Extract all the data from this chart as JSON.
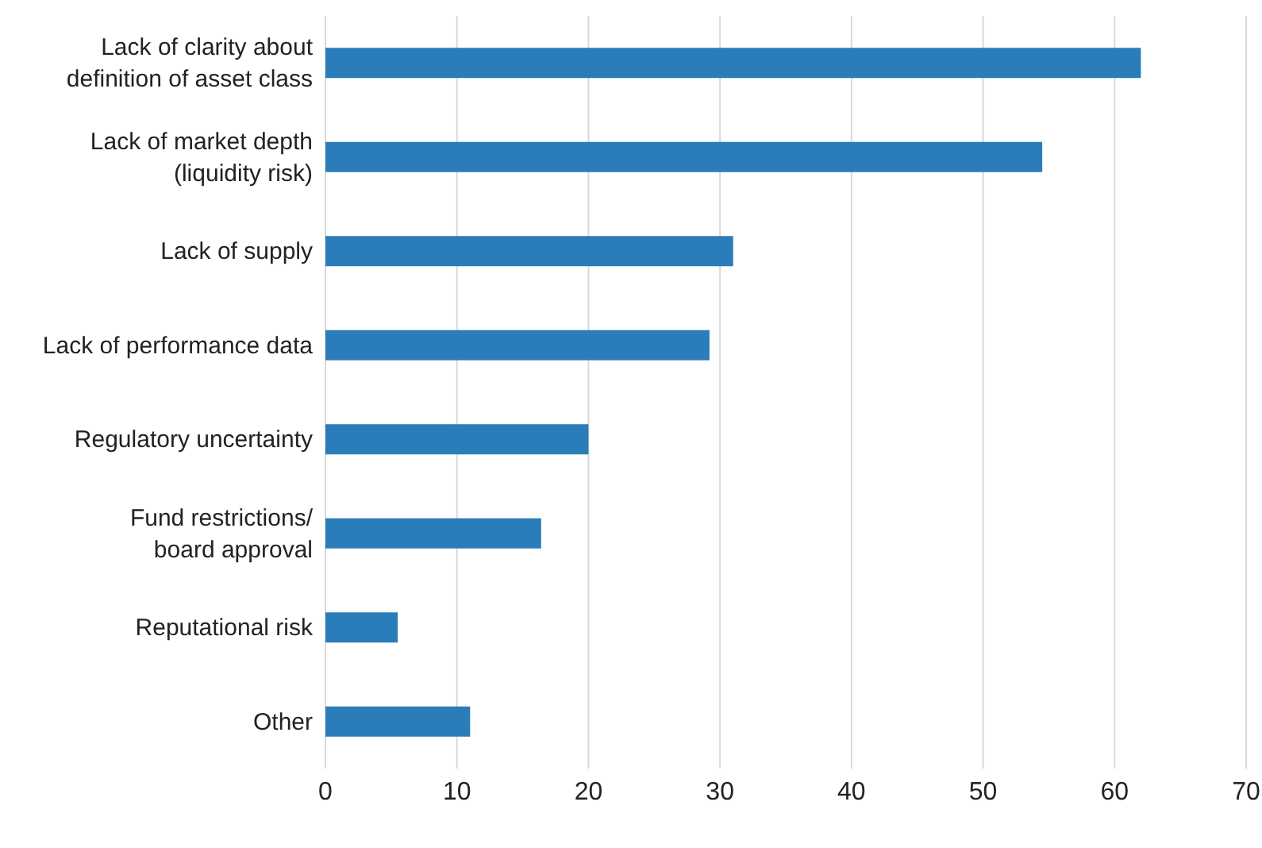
{
  "chart_data": {
    "type": "bar",
    "orientation": "horizontal",
    "categories": [
      "Lack of clarity about definition of asset class",
      "Lack of market depth (liquidity risk)",
      "Lack of supply",
      "Lack of performance data",
      "Regulatory uncertainty",
      "Fund restrictions/ board approval",
      "Reputational risk",
      "Other"
    ],
    "values": [
      62,
      54.5,
      31,
      29.2,
      20,
      16.4,
      5.5,
      11
    ],
    "color": "#2a7db8",
    "xlim": [
      0,
      70
    ],
    "xticks": [
      0,
      10,
      20,
      30,
      40,
      50,
      60,
      70
    ],
    "grid": "x"
  }
}
